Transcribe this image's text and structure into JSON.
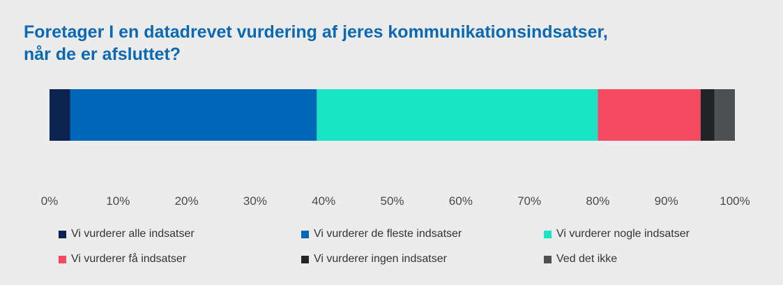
{
  "chart_data": {
    "type": "bar",
    "orientation": "horizontal",
    "stacked": true,
    "title_lines": [
      "Foretager I en datadrevet vurdering af jeres kommunikationsindsatser,",
      "når de er afsluttet?"
    ],
    "x_ticks": [
      "0%",
      "10%",
      "20%",
      "30%",
      "40%",
      "50%",
      "60%",
      "70%",
      "80%",
      "90%",
      "100%"
    ],
    "xlim": [
      0,
      100
    ],
    "grid": false,
    "legend_position": "bottom",
    "series": [
      {
        "name": "Vi vurderer alle indsatser",
        "value": 3,
        "color": "#0b2350"
      },
      {
        "name": "Vi vurderer de fleste indsatser",
        "value": 36,
        "color": "#0067b8"
      },
      {
        "name": "Vi vurderer nogle indsatser",
        "value": 41,
        "color": "#18e3c2"
      },
      {
        "name": "Vi vurderer få indsatser",
        "value": 15,
        "color": "#f54a62"
      },
      {
        "name": "Vi vurderer ingen indsatser",
        "value": 2,
        "color": "#232428"
      },
      {
        "name": "Ved det ikke",
        "value": 3,
        "color": "#4f5054"
      }
    ]
  }
}
